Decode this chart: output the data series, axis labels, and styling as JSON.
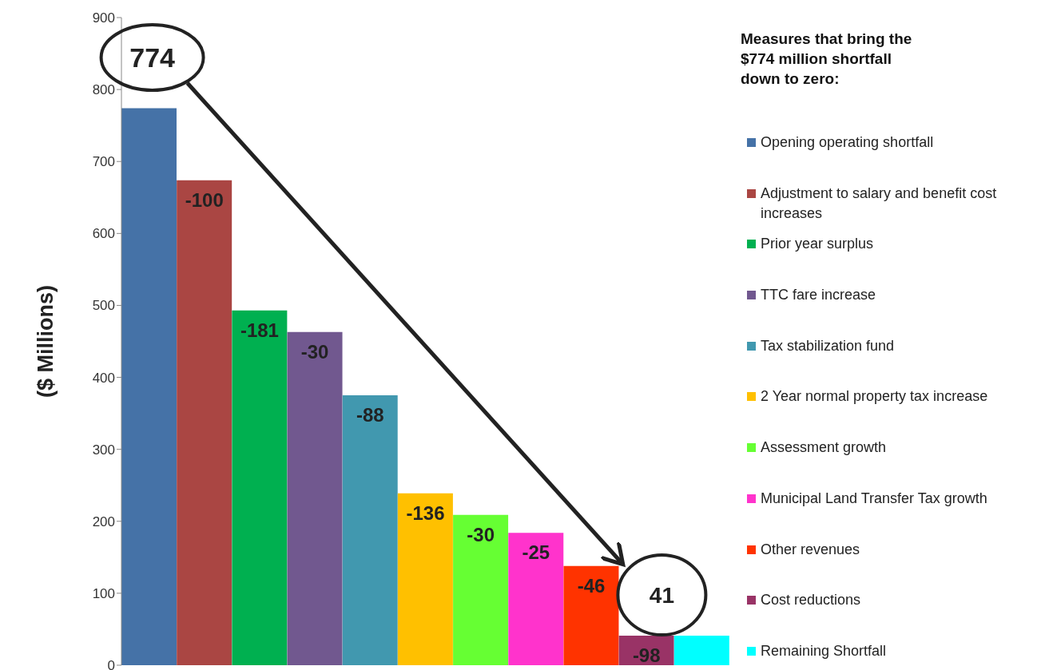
{
  "chart_data": {
    "type": "bar",
    "ylabel": "($ Millions)",
    "legend_title": "Measures that bring the $774 million shortfall down to zero:",
    "categories": [
      null,
      null,
      null,
      null,
      null,
      null,
      null,
      null,
      null,
      null,
      null
    ],
    "stacked": true,
    "series": [
      {
        "name": "Opening operating shortfall",
        "color": "#4572a7",
        "values": [
          774,
          null,
          null,
          null,
          null,
          null,
          null,
          null,
          null,
          null,
          null
        ]
      },
      {
        "name": "Adjustment to salary and benefit cost increases",
        "color": "#aa4643",
        "values": [
          null,
          674,
          null,
          null,
          null,
          null,
          null,
          null,
          null,
          null,
          null
        ]
      },
      {
        "name": "Prior year surplus",
        "color": "#00b050",
        "values": [
          null,
          null,
          493,
          null,
          null,
          null,
          null,
          null,
          null,
          null,
          null
        ]
      },
      {
        "name": "TTC fare increase",
        "color": "#71588f",
        "values": [
          null,
          null,
          null,
          463,
          null,
          null,
          null,
          null,
          null,
          null,
          null
        ]
      },
      {
        "name": "Tax stabilization fund",
        "color": "#4198af",
        "values": [
          null,
          null,
          null,
          null,
          375,
          null,
          null,
          null,
          null,
          null,
          null
        ]
      },
      {
        "name": "2 Year normal property tax increase",
        "color": "#ffc000",
        "values": [
          null,
          null,
          null,
          null,
          null,
          239,
          null,
          null,
          null,
          null,
          null
        ]
      },
      {
        "name": "Assessment growth",
        "color": "#66ff33",
        "values": [
          null,
          null,
          null,
          null,
          null,
          null,
          209,
          null,
          null,
          null,
          null
        ]
      },
      {
        "name": "Municipal Land Transfer Tax growth",
        "color": "#ff33cc",
        "values": [
          null,
          null,
          null,
          null,
          null,
          null,
          null,
          184,
          null,
          null,
          null
        ]
      },
      {
        "name": "Other revenues",
        "color": "#ff3300",
        "values": [
          null,
          null,
          null,
          null,
          null,
          null,
          null,
          null,
          138,
          null,
          null
        ]
      },
      {
        "name": "Cost reductions",
        "color": "#993366",
        "values": [
          null,
          null,
          null,
          null,
          null,
          null,
          null,
          null,
          null,
          41,
          null
        ]
      },
      {
        "name": "Remaining Shortfall",
        "color": "#00ffff",
        "values": [
          null,
          null,
          null,
          null,
          null,
          null,
          null,
          null,
          null,
          null,
          41
        ]
      }
    ],
    "annotations": [
      "774",
      "41",
      "-100",
      "-181",
      "-30",
      "-88",
      "-136",
      "-30",
      "-25",
      "-46",
      "-98"
    ],
    "ylim": [
      0,
      900
    ],
    "yticks": [
      0,
      100,
      200,
      300,
      400,
      500,
      600,
      700,
      800,
      900
    ],
    "grid": false,
    "legend": "right",
    "tick_labels": "y"
  }
}
